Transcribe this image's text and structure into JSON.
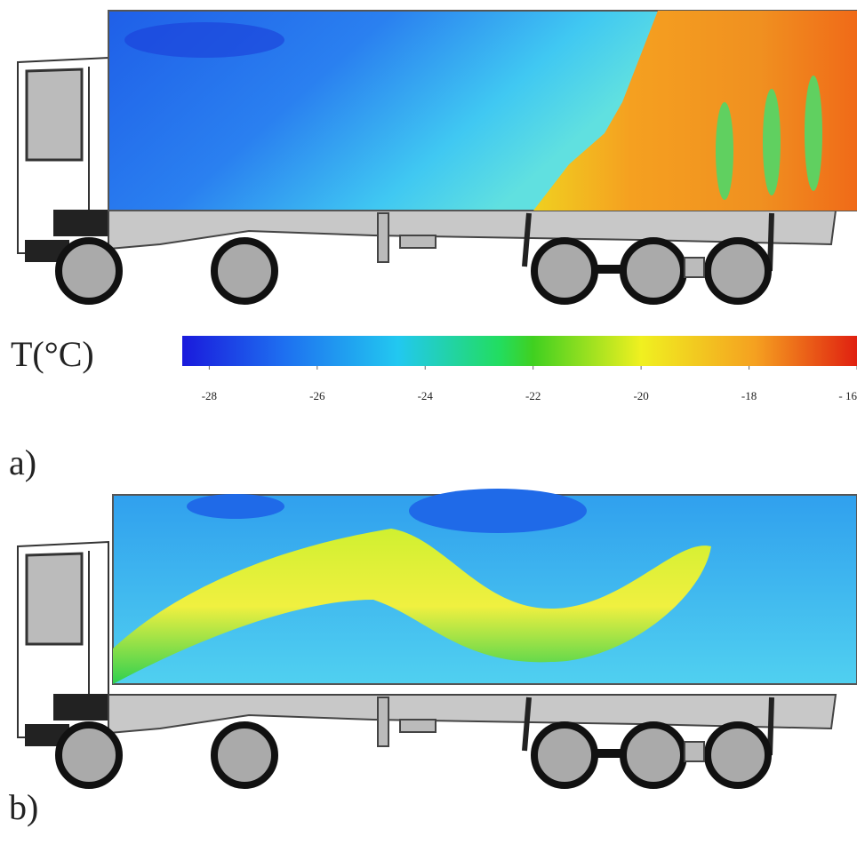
{
  "colorbar": {
    "label": "T(°C)",
    "clim": [
      -28.5,
      -16
    ],
    "ticks": [
      -28,
      -26,
      -24,
      -22,
      -20,
      -18,
      {
        "value": -16,
        "label": "- 16"
      }
    ]
  },
  "panels": [
    {
      "label": "a)"
    },
    {
      "label": "b)"
    }
  ]
}
